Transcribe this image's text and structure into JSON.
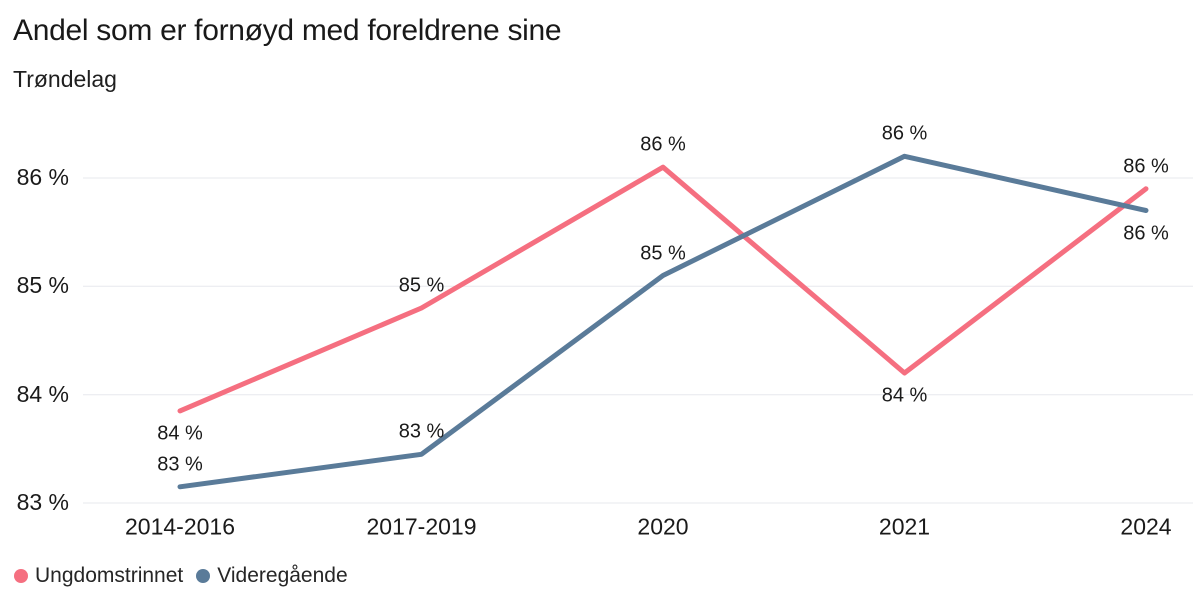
{
  "chart": {
    "title": "Andel som er fornøyd med foreldrene sine",
    "subtitle": "Trøndelag"
  },
  "chart_data": {
    "type": "line",
    "title": "Andel som er fornøyd med foreldrene sine",
    "subtitle": "Trøndelag",
    "categories": [
      "2014-2016",
      "2017-2019",
      "2020",
      "2021",
      "2024"
    ],
    "series": [
      {
        "name": "Ungdomstrinnet",
        "color": "#f56f80",
        "values": [
          83.85,
          84.8,
          86.1,
          84.2,
          85.9
        ],
        "point_labels": [
          "84 %",
          "85 %",
          "86 %",
          "84 %",
          "86 %"
        ],
        "label_positions": [
          "below",
          "above",
          "above",
          "below",
          "above"
        ]
      },
      {
        "name": "Videregående",
        "color": "#5a7b99",
        "values": [
          83.15,
          83.45,
          85.1,
          86.2,
          85.7
        ],
        "point_labels": [
          "83 %",
          "83 %",
          "85 %",
          "86 %",
          "86 %"
        ],
        "label_positions": [
          "above",
          "above",
          "above",
          "above",
          "below"
        ]
      }
    ],
    "xlabel": "",
    "ylabel": "",
    "ylim": [
      82.8,
      86.6
    ],
    "yticks": [
      83,
      84,
      85,
      86
    ],
    "ytick_labels": [
      "83 %",
      "84 %",
      "85 %",
      "86 %"
    ],
    "grid": "horizontal",
    "gridline_color": "#e7e8ed",
    "text_color": "#1a1a1a",
    "legend_position": "bottom-left",
    "line_width": 5
  }
}
